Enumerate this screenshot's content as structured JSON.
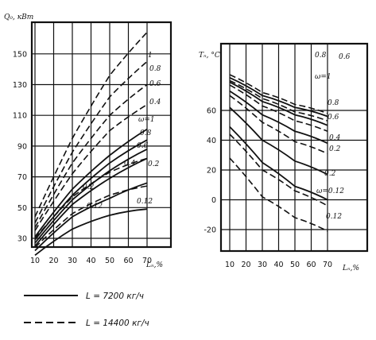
{
  "chart_data": [
    {
      "type": "line",
      "ylabel": "Q₀, кВт",
      "xlabel": "Lₙ,%",
      "x_ticks": [
        "10",
        "20",
        "30",
        "40",
        "50",
        "60",
        "70"
      ],
      "y_ticks": [
        "30",
        "50",
        "70",
        "90",
        "110",
        "130",
        "150"
      ],
      "xlim": [
        10,
        70
      ],
      "ylim": [
        30,
        150
      ],
      "grid": true,
      "series": [
        {
          "style": "dashed",
          "label": "1",
          "x": [
            10,
            30,
            50,
            70
          ],
          "values": [
            44,
            95,
            136,
            164
          ]
        },
        {
          "style": "dashed",
          "label": "0.8",
          "x": [
            10,
            30,
            50,
            70
          ],
          "values": [
            40,
            86,
            122,
            145
          ]
        },
        {
          "style": "dashed",
          "label": "0.6",
          "x": [
            10,
            30,
            50,
            70
          ],
          "values": [
            37,
            79,
            110,
            130
          ]
        },
        {
          "style": "dashed",
          "label": "0.4",
          "x": [
            10,
            30,
            50,
            70
          ],
          "values": [
            35,
            72,
            100,
            117
          ]
        },
        {
          "style": "solid",
          "label": "ω=1",
          "x": [
            10,
            30,
            50,
            70
          ],
          "values": [
            31,
            62,
            84,
            101
          ]
        },
        {
          "style": "solid",
          "label": "0.8",
          "x": [
            10,
            30,
            50,
            70
          ],
          "values": [
            29,
            58,
            79,
            94
          ]
        },
        {
          "style": "solid",
          "label": "0.6",
          "x": [
            10,
            30,
            50,
            70
          ],
          "values": [
            27,
            55,
            74,
            88
          ]
        },
        {
          "style": "solid",
          "label": "0.4",
          "x": [
            10,
            30,
            50,
            70
          ],
          "values": [
            25,
            52,
            69,
            82
          ]
        },
        {
          "style": "dashed",
          "label": "0.2",
          "x": [
            10,
            30,
            50,
            70
          ],
          "values": [
            30,
            57,
            73,
            82
          ]
        },
        {
          "style": "dashed",
          "label": "0.12",
          "x": [
            10,
            30,
            50,
            70
          ],
          "values": [
            24,
            46,
            58,
            64
          ]
        },
        {
          "style": "solid",
          "label": "0.2",
          "x": [
            10,
            30,
            50,
            70
          ],
          "values": [
            22,
            44,
            56,
            66
          ]
        },
        {
          "style": "solid",
          "label": "0.12",
          "x": [
            10,
            30,
            50,
            70
          ],
          "values": [
            19,
            36,
            45,
            49
          ]
        }
      ]
    },
    {
      "type": "line",
      "ylabel": "Tₙ, °C",
      "xlabel": "Lₙ,%",
      "x_ticks": [
        "10",
        "20",
        "30",
        "40",
        "50",
        "60",
        "70"
      ],
      "y_ticks": [
        "-20",
        "0",
        "20",
        "40",
        "60"
      ],
      "xlim": [
        10,
        70
      ],
      "ylim": [
        -30,
        80
      ],
      "grid": true,
      "series": [
        {
          "style": "dashed",
          "label": "ω=1",
          "x": [
            10,
            30,
            50,
            70
          ],
          "values": [
            84,
            72,
            64,
            58
          ]
        },
        {
          "style": "solid",
          "label": "0.8",
          "x": [
            10,
            30,
            50,
            70
          ],
          "values": [
            82,
            70,
            62,
            56
          ]
        },
        {
          "style": "dashed",
          "label": "0.8",
          "x": [
            10,
            30,
            50,
            70
          ],
          "values": [
            80,
            68,
            59,
            53
          ]
        },
        {
          "style": "solid",
          "label": "0.6",
          "x": [
            10,
            30,
            50,
            70
          ],
          "values": [
            79,
            66,
            57,
            50
          ]
        },
        {
          "style": "dashed",
          "label": "0.6",
          "x": [
            10,
            30,
            50,
            70
          ],
          "values": [
            77,
            63,
            53,
            46
          ]
        },
        {
          "style": "solid",
          "label": "0.4",
          "x": [
            10,
            30,
            50,
            70
          ],
          "values": [
            73,
            57,
            46,
            38
          ]
        },
        {
          "style": "dashed",
          "label": "0.4",
          "x": [
            10,
            30,
            50,
            70
          ],
          "values": [
            70,
            52,
            39,
            31
          ]
        },
        {
          "style": "solid",
          "label": "0.2",
          "x": [
            10,
            30,
            50,
            70
          ],
          "values": [
            62,
            40,
            26,
            17
          ]
        },
        {
          "style": "solid",
          "label": "0.12",
          "x": [
            10,
            30,
            50,
            70
          ],
          "values": [
            49,
            25,
            9,
            0
          ]
        },
        {
          "style": "dashed",
          "label": "0.2",
          "x": [
            10,
            30,
            50,
            70
          ],
          "values": [
            44,
            20,
            6,
            -4
          ]
        },
        {
          "style": "dashed",
          "label": "ω=0.12",
          "x": [
            10,
            30,
            50,
            70
          ],
          "values": [
            28,
            2,
            -12,
            -21
          ]
        }
      ],
      "labels": [
        "0.6",
        "0.8",
        "ω=1",
        "0.8",
        "0.6",
        "0.4",
        "0.2",
        "0.2",
        "ω=0.12",
        "0.12"
      ]
    }
  ],
  "legend": [
    {
      "style": "solid",
      "text": "L = 7200 кг/ч"
    },
    {
      "style": "dashed",
      "text": "L = 14400 кг/ч"
    }
  ]
}
